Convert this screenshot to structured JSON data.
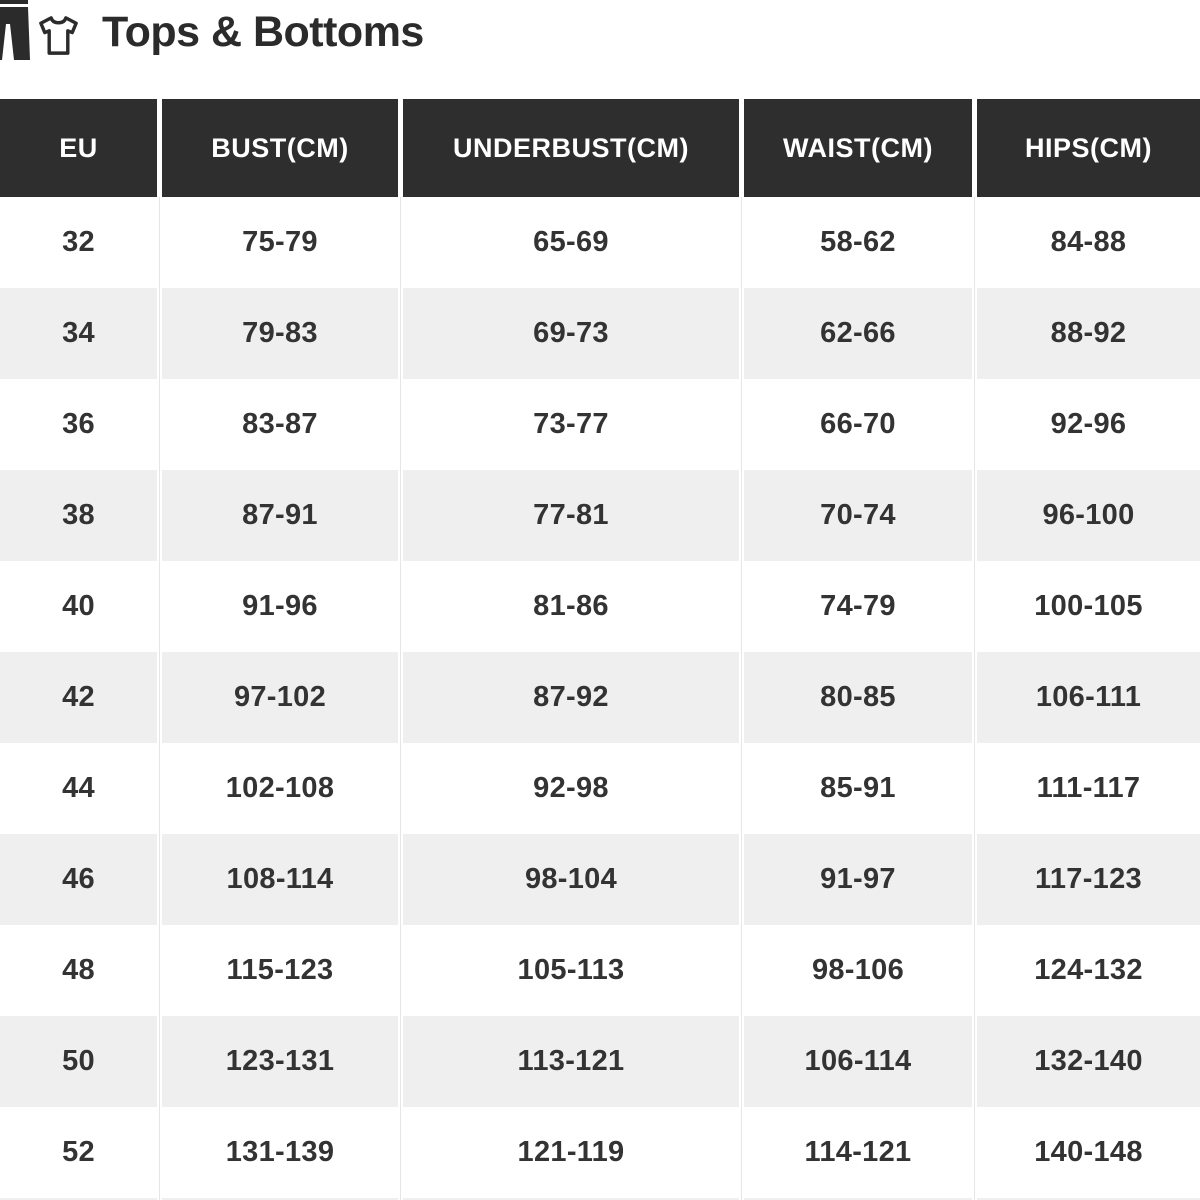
{
  "header": {
    "title": "Tops & Bottoms"
  },
  "colors": {
    "header_bg": "#2e2e2e",
    "header_text": "#ffffff",
    "row_alt_bg": "#efefef",
    "cell_text": "#333333",
    "title_text": "#2b2b2b"
  },
  "chart_data": {
    "type": "table",
    "title": "Tops & Bottoms",
    "headers": [
      "EU",
      "BUST(CM)",
      "UNDERBUST(CM)",
      "WAIST(CM)",
      "HIPS(CM)"
    ],
    "rows": [
      [
        "32",
        "75-79",
        "65-69",
        "58-62",
        "84-88"
      ],
      [
        "34",
        "79-83",
        "69-73",
        "62-66",
        "88-92"
      ],
      [
        "36",
        "83-87",
        "73-77",
        "66-70",
        "92-96"
      ],
      [
        "38",
        "87-91",
        "77-81",
        "70-74",
        "96-100"
      ],
      [
        "40",
        "91-96",
        "81-86",
        "74-79",
        "100-105"
      ],
      [
        "42",
        "97-102",
        "87-92",
        "80-85",
        "106-111"
      ],
      [
        "44",
        "102-108",
        "92-98",
        "85-91",
        "111-117"
      ],
      [
        "46",
        "108-114",
        "98-104",
        "91-97",
        "117-123"
      ],
      [
        "48",
        "115-123",
        "105-113",
        "98-106",
        "124-132"
      ],
      [
        "50",
        "123-131",
        "113-121",
        "106-114",
        "132-140"
      ],
      [
        "52",
        "131-139",
        "121-119",
        "114-121",
        "140-148"
      ]
    ]
  }
}
